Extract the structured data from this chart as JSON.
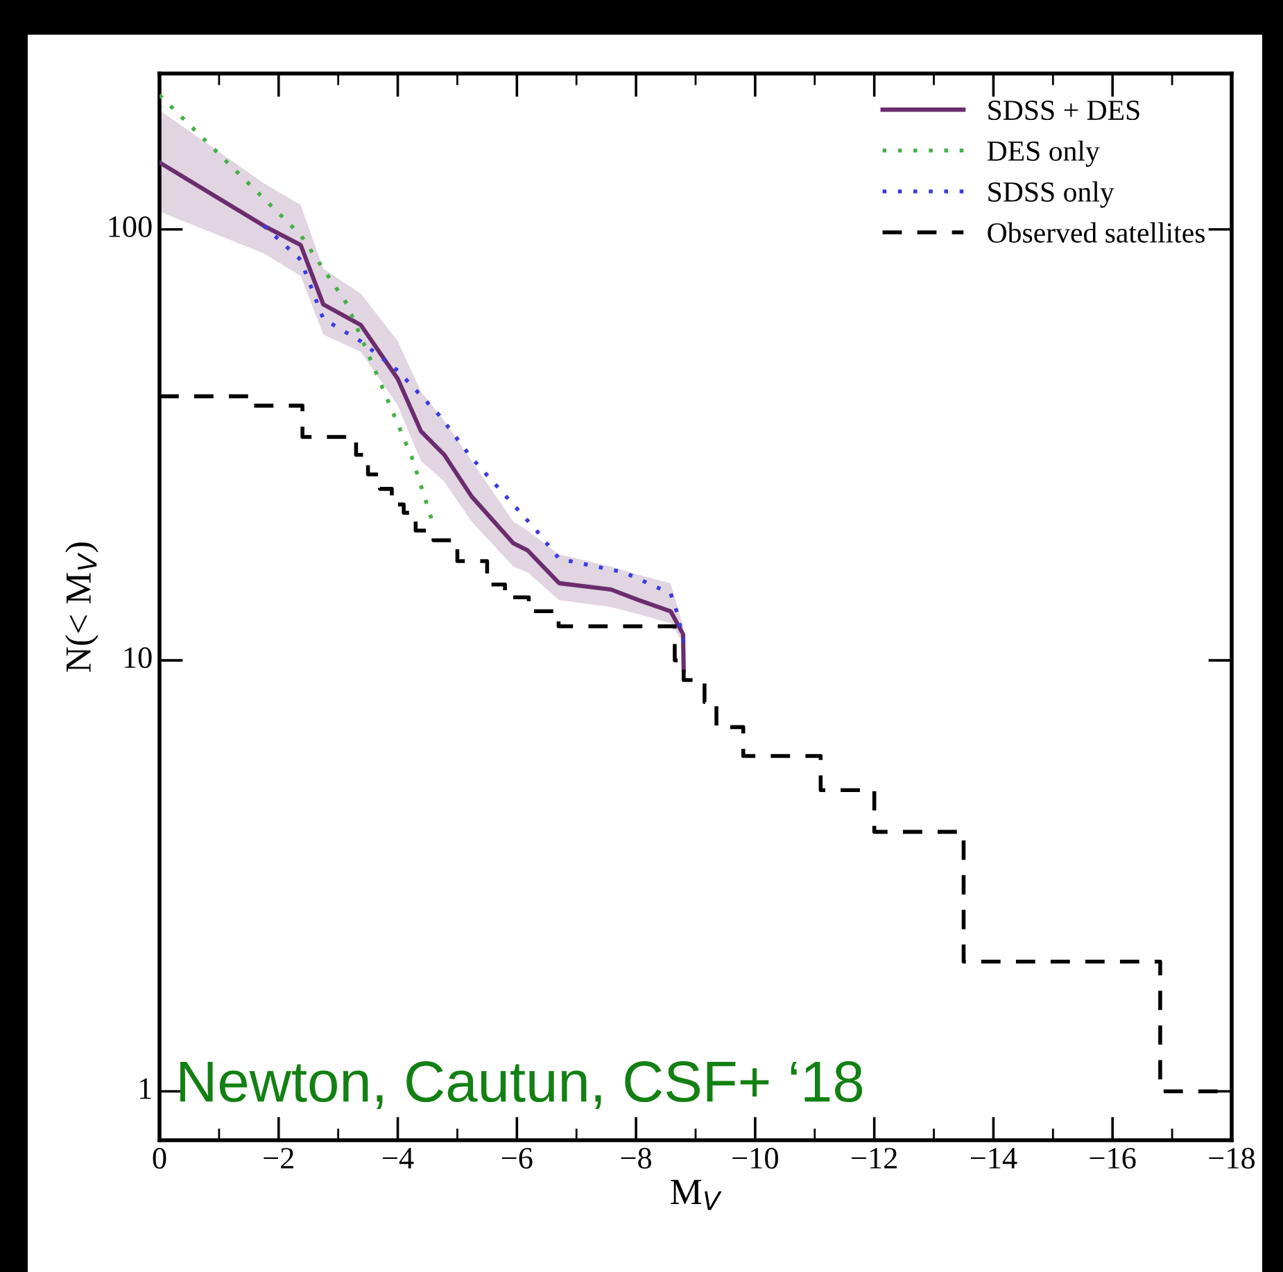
{
  "chart_data": {
    "type": "line",
    "xlabel": "M$_{V}$",
    "ylabel": "N(< M$_{V}$)",
    "log": "y",
    "xlim": [
      0,
      -18
    ],
    "xticks": [
      0,
      -2,
      -4,
      -6,
      -8,
      -10,
      -12,
      -14,
      -16,
      -18
    ],
    "ylim": [
      0.77,
      230
    ],
    "yticks": [
      1,
      10,
      100
    ],
    "grid": false,
    "legend": "top right",
    "marker": "none",
    "annotations": [
      "Newton, Cautun, CSF+ ‘18"
    ],
    "series": [
      {
        "name": "SDSS + DES",
        "line_style": "solid",
        "color": "#6b2d6e",
        "x": [
          0,
          -1.75,
          -2.37,
          -2.75,
          -3.38,
          -4.0,
          -4.39,
          -4.78,
          -5.24,
          -5.94,
          -6.18,
          -6.71,
          -7.58,
          -8.04,
          -8.58,
          -8.79,
          -8.8
        ],
        "values": [
          143,
          102,
          92,
          67,
          60,
          45,
          34,
          30,
          24,
          18.7,
          18,
          15.1,
          14.6,
          13.8,
          13,
          11.5,
          9.5
        ],
        "upper": [
          189,
          128,
          114,
          81,
          71,
          55,
          42,
          36,
          29,
          21,
          20,
          17.6,
          16.5,
          15.8,
          15.1,
          12,
          9.5
        ],
        "lower": [
          110,
          88,
          78,
          57,
          52,
          39,
          29,
          26,
          21,
          16.5,
          16,
          13.8,
          13.3,
          12.8,
          12.2,
          11,
          9.5
        ]
      },
      {
        "name": "DES only",
        "line_style": "dotted",
        "color": "#44b044",
        "x": [
          0,
          -2.37,
          -3.15,
          -3.68,
          -4.24,
          -4.59
        ],
        "values": [
          205,
          97,
          67,
          45,
          29.5,
          20.8
        ]
      },
      {
        "name": "SDSS only",
        "line_style": "dotted",
        "color": "#3a3adf",
        "x": [
          -1.75,
          -2.37,
          -2.75,
          -3.38,
          -4.0,
          -4.7,
          -5.24,
          -6.33,
          -6.71,
          -7.8,
          -8.58,
          -8.69,
          -8.8
        ],
        "values": [
          102,
          85,
          62,
          55,
          47,
          37,
          29.5,
          20,
          17.2,
          16,
          14.3,
          12.9,
          11
        ]
      },
      {
        "name": "Observed satellites",
        "type": "step",
        "line_style": "dashed",
        "color": "#000000",
        "x": [
          0,
          -1.55,
          -2.4,
          -3.3,
          -3.5,
          -3.7,
          -3.9,
          -4.1,
          -4.3,
          -4.6,
          -5.0,
          -5.5,
          -5.8,
          -6.2,
          -6.7,
          -8.65,
          -8.8,
          -9.15,
          -9.35,
          -9.8,
          -11.1,
          -12.0,
          -13.5,
          -16.8,
          -18
        ],
        "values": [
          41,
          39,
          33,
          30,
          27,
          25,
          23,
          22,
          20,
          19,
          17,
          15,
          14,
          13,
          12,
          10,
          9,
          8,
          7,
          6,
          5,
          4,
          2,
          1,
          1
        ]
      }
    ]
  }
}
